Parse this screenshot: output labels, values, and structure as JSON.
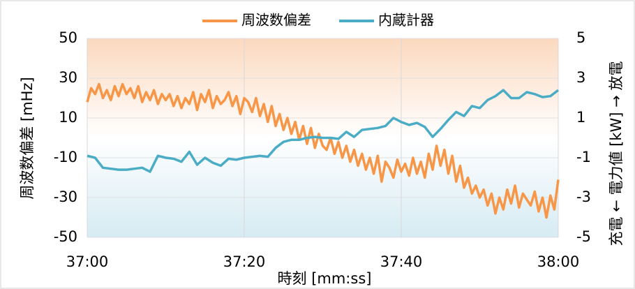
{
  "chart_data": {
    "type": "line",
    "xlabel": "時刻 [mm:ss]",
    "ylabel": "周波数偏差 [mHz]",
    "y2label": "充電 ← 電力値 [kW] → 放電",
    "xlim": [
      0,
      60
    ],
    "xticks": [
      {
        "value": 0,
        "label": "37:00"
      },
      {
        "value": 20,
        "label": "37:20"
      },
      {
        "value": 40,
        "label": "37:40"
      },
      {
        "value": 60,
        "label": "38:00"
      }
    ],
    "ylim": [
      -50,
      50
    ],
    "yticks": [
      -50,
      -30,
      -10,
      10,
      30,
      50
    ],
    "y2lim": [
      -5,
      5
    ],
    "y2ticks": [
      -5,
      -3,
      -1,
      1,
      3,
      5
    ],
    "grid": true,
    "legend": "top",
    "series": [
      {
        "name": "周波数偏差",
        "color": "#f79646",
        "axis": "y",
        "x": [
          0,
          0.5,
          1,
          1.5,
          2,
          2.5,
          3,
          3.5,
          4,
          4.5,
          5,
          5.5,
          6,
          6.5,
          7,
          7.5,
          8,
          8.5,
          9,
          9.5,
          10,
          10.5,
          11,
          11.5,
          12,
          12.5,
          13,
          13.5,
          14,
          14.5,
          15,
          15.5,
          16,
          16.5,
          17,
          17.5,
          18,
          18.5,
          19,
          19.5,
          20,
          20.5,
          21,
          21.5,
          22,
          22.5,
          23,
          23.5,
          24,
          24.5,
          25,
          25.5,
          26,
          26.5,
          27,
          27.5,
          28,
          28.5,
          29,
          29.5,
          30,
          30.5,
          31,
          31.5,
          32,
          32.5,
          33,
          33.5,
          34,
          34.5,
          35,
          35.5,
          36,
          36.5,
          37,
          37.5,
          38,
          38.5,
          39,
          39.5,
          40,
          40.5,
          41,
          41.5,
          42,
          42.5,
          43,
          43.5,
          44,
          44.5,
          45,
          45.5,
          46,
          46.5,
          47,
          47.5,
          48,
          48.5,
          49,
          49.5,
          50,
          50.5,
          51,
          51.5,
          52,
          52.5,
          53,
          53.5,
          54,
          54.5,
          55,
          55.5,
          56,
          56.5,
          57,
          57.5,
          58,
          58.5,
          59,
          59.5,
          60
        ],
        "values": [
          18,
          25,
          22,
          27,
          20,
          24,
          19,
          26,
          21,
          27,
          22,
          25,
          20,
          26,
          18,
          23,
          19,
          24,
          17,
          22,
          19,
          22,
          16,
          21,
          15,
          20,
          17,
          23,
          14,
          22,
          18,
          24,
          15,
          21,
          17,
          19,
          23,
          16,
          21,
          12,
          20,
          18,
          13,
          20,
          11,
          17,
          8,
          16,
          6,
          12,
          4,
          10,
          2,
          8,
          -1,
          6,
          -3,
          5,
          -5,
          2,
          -4,
          -6,
          0,
          -8,
          -2,
          -10,
          -4,
          -12,
          -6,
          -14,
          -8,
          -16,
          -10,
          -18,
          -9,
          -22,
          -12,
          -15,
          -20,
          -11,
          -17,
          -13,
          -19,
          -10,
          -18,
          -12,
          -20,
          -8,
          -16,
          -4,
          -14,
          -6,
          -18,
          -9,
          -22,
          -14,
          -25,
          -20,
          -28,
          -24,
          -30,
          -26,
          -34,
          -28,
          -38,
          -30,
          -36,
          -26,
          -33,
          -24,
          -35,
          -28,
          -31,
          -34,
          -27,
          -37,
          -30,
          -40,
          -29,
          -36,
          -21
        ]
      },
      {
        "name": "内蔵計器",
        "color": "#4bacc6",
        "axis": "y2",
        "x": [
          0,
          1,
          2,
          3,
          4,
          5,
          6,
          7,
          8,
          9,
          10,
          11,
          12,
          13,
          14,
          15,
          16,
          17,
          18,
          19,
          20,
          21,
          22,
          23,
          24,
          25,
          26,
          27,
          28,
          29,
          30,
          31,
          32,
          33,
          34,
          35,
          36,
          37,
          38,
          39,
          40,
          41,
          42,
          43,
          44,
          45,
          46,
          47,
          48,
          49,
          50,
          51,
          52,
          53,
          54,
          55,
          56,
          57,
          58,
          59,
          60
        ],
        "values": [
          -0.9,
          -1.0,
          -1.5,
          -1.55,
          -1.6,
          -1.6,
          -1.55,
          -1.5,
          -1.7,
          -0.9,
          -1.0,
          -1.05,
          -1.2,
          -0.7,
          -1.35,
          -1.0,
          -1.25,
          -1.4,
          -1.05,
          -1.1,
          -1.0,
          -0.95,
          -0.9,
          -0.95,
          -0.5,
          -0.2,
          -0.1,
          -0.1,
          0.0,
          0.05,
          0.0,
          0.0,
          -0.05,
          0.3,
          0.05,
          0.4,
          0.45,
          0.5,
          0.6,
          1.0,
          0.8,
          0.65,
          0.75,
          0.55,
          0.05,
          0.45,
          0.9,
          1.3,
          1.1,
          1.6,
          1.5,
          1.9,
          2.1,
          2.4,
          2.0,
          2.0,
          2.3,
          2.2,
          2.05,
          2.1,
          2.4
        ]
      }
    ]
  }
}
